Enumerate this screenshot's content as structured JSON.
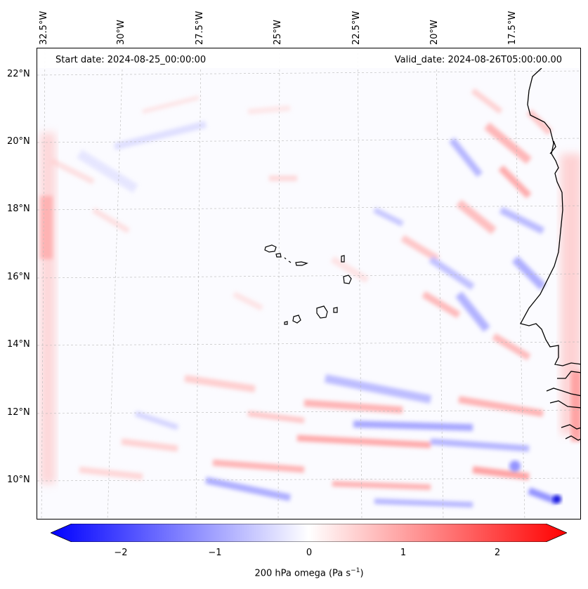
{
  "header": {
    "start_date": "Start date: 2024-08-25_00:00:00",
    "valid_date": "Valid_date: 2024-08-26T05:00:00.00"
  },
  "axes": {
    "lon_labels": [
      "32.5°W",
      "30°W",
      "27.5°W",
      "25°W",
      "22.5°W",
      "20°W",
      "17.5°W"
    ],
    "lat_labels": [
      "22°N",
      "20°N",
      "18°N",
      "16°N",
      "14°N",
      "12°N",
      "10°N"
    ]
  },
  "colorbar": {
    "label": "200 hPa omega (Pa s",
    "label_sup": "−1",
    "label_end": ")",
    "ticks": [
      "−2",
      "−1",
      "0",
      "1",
      "2"
    ],
    "range": [
      -2.75,
      2.75
    ],
    "cmap": "bwr",
    "low_color": "#0000ff",
    "mid_color": "#ffffff",
    "high_color": "#ff0000"
  }
}
